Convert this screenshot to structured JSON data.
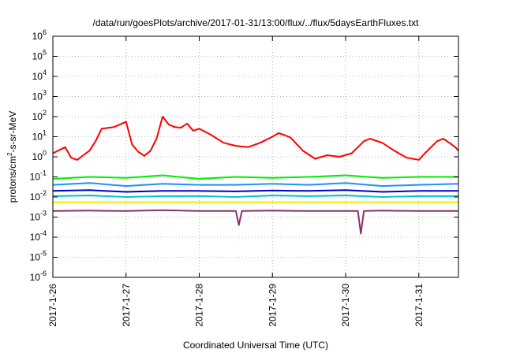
{
  "chart_data": {
    "type": "line",
    "title": "/data/run/goesPlots/archive/2017-01-31/13:00/flux/../flux/5daysEarthFluxes.txt",
    "xlabel": "Coordinated Universal Time (UTC)",
    "ylabel": "protons/cm2-s-sr-MeV",
    "ylabel_parts": [
      "protons/cm",
      "2",
      "-s-sr-MeV"
    ],
    "y_scale": "log",
    "ylim": [
      1e-06,
      1000000.0
    ],
    "y_ticks": [
      {
        "value": 1e-06,
        "base": "10",
        "exp": "-6"
      },
      {
        "value": 1e-05,
        "base": "10",
        "exp": "-5"
      },
      {
        "value": 0.0001,
        "base": "10",
        "exp": "-4"
      },
      {
        "value": 0.001,
        "base": "10",
        "exp": "-3"
      },
      {
        "value": 0.01,
        "base": "10",
        "exp": "-2"
      },
      {
        "value": 0.1,
        "base": "10",
        "exp": "-1"
      },
      {
        "value": 1,
        "base": "10",
        "exp": "0"
      },
      {
        "value": 10.0,
        "base": "10",
        "exp": "1"
      },
      {
        "value": 100.0,
        "base": "10",
        "exp": "2"
      },
      {
        "value": 1000.0,
        "base": "10",
        "exp": "3"
      },
      {
        "value": 10000.0,
        "base": "10",
        "exp": "4"
      },
      {
        "value": 100000.0,
        "base": "10",
        "exp": "5"
      },
      {
        "value": 1000000.0,
        "base": "10",
        "exp": "6"
      }
    ],
    "xlim": [
      "2017-01-26T00:00",
      "2017-01-31T13:00"
    ],
    "x_ticks": [
      "2017-1-26",
      "2017-1-27",
      "2017-1-28",
      "2017-1-29",
      "2017-1-30",
      "2017-1-31"
    ],
    "grid": true,
    "series": [
      {
        "color": "#ff0000",
        "x": [
          "2017-01-26T00:00",
          "2017-01-26T04:00",
          "2017-01-26T06:00",
          "2017-01-26T08:00",
          "2017-01-26T10:00",
          "2017-01-26T12:00",
          "2017-01-26T14:00",
          "2017-01-26T16:00",
          "2017-01-26T20:00",
          "2017-01-27T00:00",
          "2017-01-27T02:00",
          "2017-01-27T04:00",
          "2017-01-27T06:00",
          "2017-01-27T08:00",
          "2017-01-27T10:00",
          "2017-01-27T12:00",
          "2017-01-27T14:00",
          "2017-01-27T16:00",
          "2017-01-27T18:00",
          "2017-01-27T20:00",
          "2017-01-27T22:00",
          "2017-01-28T00:00",
          "2017-01-28T04:00",
          "2017-01-28T08:00",
          "2017-01-28T12:00",
          "2017-01-28T16:00",
          "2017-01-28T20:00",
          "2017-01-29T00:00",
          "2017-01-29T02:00",
          "2017-01-29T04:00",
          "2017-01-29T06:00",
          "2017-01-29T10:00",
          "2017-01-29T14:00",
          "2017-01-29T18:00",
          "2017-01-29T22:00",
          "2017-01-30T02:00",
          "2017-01-30T04:00",
          "2017-01-30T06:00",
          "2017-01-30T08:00",
          "2017-01-30T12:00",
          "2017-01-30T16:00",
          "2017-01-30T20:00",
          "2017-01-31T00:00",
          "2017-01-31T02:00",
          "2017-01-31T04:00",
          "2017-01-31T06:00",
          "2017-01-31T08:00",
          "2017-01-31T10:00",
          "2017-01-31T12:00",
          "2017-01-31T13:00"
        ],
        "values": [
          1.5,
          3,
          0.9,
          0.7,
          1.2,
          2,
          6,
          25,
          30,
          55,
          4,
          1.8,
          1.1,
          2,
          8,
          100,
          40,
          30,
          28,
          45,
          20,
          25,
          12,
          5,
          3.5,
          3,
          5,
          10,
          15,
          12,
          9,
          2,
          0.8,
          1.2,
          1,
          1.5,
          3,
          6,
          8,
          5,
          2,
          0.9,
          0.7,
          1.5,
          3,
          6,
          8,
          5,
          3,
          2
        ]
      },
      {
        "color": "#00ee00",
        "x": [
          "2017-01-26T00:00",
          "2017-01-26T12:00",
          "2017-01-27T00:00",
          "2017-01-27T12:00",
          "2017-01-28T00:00",
          "2017-01-28T12:00",
          "2017-01-29T00:00",
          "2017-01-29T12:00",
          "2017-01-30T00:00",
          "2017-01-30T12:00",
          "2017-01-31T00:00",
          "2017-01-31T13:00"
        ],
        "values": [
          0.08,
          0.1,
          0.09,
          0.12,
          0.08,
          0.1,
          0.09,
          0.1,
          0.12,
          0.09,
          0.1,
          0.1
        ]
      },
      {
        "color": "#1e90ff",
        "x": [
          "2017-01-26T00:00",
          "2017-01-26T12:00",
          "2017-01-27T00:00",
          "2017-01-27T12:00",
          "2017-01-28T00:00",
          "2017-01-28T12:00",
          "2017-01-29T00:00",
          "2017-01-29T12:00",
          "2017-01-30T00:00",
          "2017-01-30T12:00",
          "2017-01-31T00:00",
          "2017-01-31T13:00"
        ],
        "values": [
          0.04,
          0.05,
          0.035,
          0.045,
          0.04,
          0.04,
          0.045,
          0.04,
          0.05,
          0.035,
          0.04,
          0.045
        ]
      },
      {
        "color": "#0000cc",
        "x": [
          "2017-01-26T00:00",
          "2017-01-26T12:00",
          "2017-01-27T00:00",
          "2017-01-27T12:00",
          "2017-01-28T00:00",
          "2017-01-28T12:00",
          "2017-01-29T00:00",
          "2017-01-29T12:00",
          "2017-01-30T00:00",
          "2017-01-30T12:00",
          "2017-01-31T00:00",
          "2017-01-31T13:00"
        ],
        "values": [
          0.02,
          0.022,
          0.018,
          0.02,
          0.02,
          0.019,
          0.021,
          0.02,
          0.022,
          0.018,
          0.02,
          0.02
        ]
      },
      {
        "color": "#00c8c8",
        "x": [
          "2017-01-26T00:00",
          "2017-01-26T12:00",
          "2017-01-27T00:00",
          "2017-01-27T12:00",
          "2017-01-28T00:00",
          "2017-01-28T12:00",
          "2017-01-29T00:00",
          "2017-01-29T12:00",
          "2017-01-30T00:00",
          "2017-01-30T12:00",
          "2017-01-31T00:00",
          "2017-01-31T13:00"
        ],
        "values": [
          0.011,
          0.012,
          0.01,
          0.011,
          0.011,
          0.01,
          0.012,
          0.011,
          0.012,
          0.01,
          0.011,
          0.011
        ]
      },
      {
        "color": "#eeee00",
        "x": [
          "2017-01-26T00:00",
          "2017-01-26T12:00",
          "2017-01-27T00:00",
          "2017-01-27T12:00",
          "2017-01-28T00:00",
          "2017-01-28T12:00",
          "2017-01-29T00:00",
          "2017-01-29T12:00",
          "2017-01-30T00:00",
          "2017-01-30T12:00",
          "2017-01-31T00:00",
          "2017-01-31T13:00"
        ],
        "values": [
          0.0055,
          0.0055,
          0.0055,
          0.0055,
          0.0055,
          0.0055,
          0.0055,
          0.0055,
          0.0055,
          0.0055,
          0.0055,
          0.0055
        ]
      },
      {
        "color": "#8b2f6b",
        "x": [
          "2017-01-26T00:00",
          "2017-01-26T12:00",
          "2017-01-27T00:00",
          "2017-01-27T12:00",
          "2017-01-28T00:00",
          "2017-01-28T12:00",
          "2017-01-28T13:00",
          "2017-01-28T14:00",
          "2017-01-29T00:00",
          "2017-01-29T12:00",
          "2017-01-30T00:00",
          "2017-01-30T04:00",
          "2017-01-30T05:00",
          "2017-01-30T06:00",
          "2017-01-30T12:00",
          "2017-01-31T00:00",
          "2017-01-31T13:00"
        ],
        "values": [
          0.002,
          0.0021,
          0.002,
          0.0022,
          0.002,
          0.002,
          0.0004,
          0.002,
          0.0021,
          0.002,
          0.002,
          0.002,
          0.00015,
          0.002,
          0.0021,
          0.002,
          0.002
        ]
      }
    ]
  }
}
